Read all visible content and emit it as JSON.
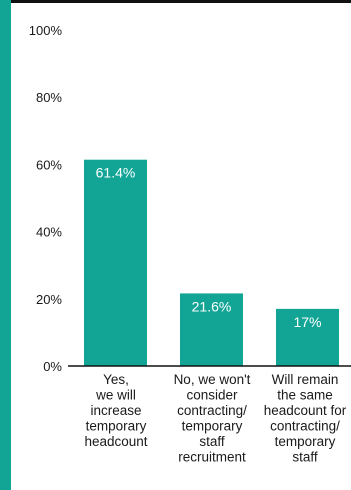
{
  "colors": {
    "accent_bar": "#12A596",
    "bar": "#12A596",
    "axis": "#111111",
    "bar_label_text": "#ffffff"
  },
  "chart_data": {
    "type": "bar",
    "categories": [
      [
        "Yes,",
        "we will",
        "increase",
        "temporary",
        "headcount"
      ],
      [
        "No, we won't",
        "consider",
        "contracting/",
        "temporary",
        "staff",
        "recruitment"
      ],
      [
        "Will remain",
        "the same",
        "headcount for",
        "contracting/",
        "temporary",
        "staff"
      ]
    ],
    "values": [
      61.4,
      21.6,
      17
    ],
    "value_labels": [
      "61.4%",
      "21.6%",
      "17%"
    ],
    "ylim": [
      0,
      100
    ],
    "yticks": [
      0,
      20,
      40,
      60,
      80,
      100
    ],
    "ytick_labels": [
      "0%",
      "20%",
      "40%",
      "60%",
      "80%",
      "100%"
    ],
    "title": "",
    "xlabel": "",
    "ylabel": "",
    "grid": false,
    "legend": "none"
  }
}
